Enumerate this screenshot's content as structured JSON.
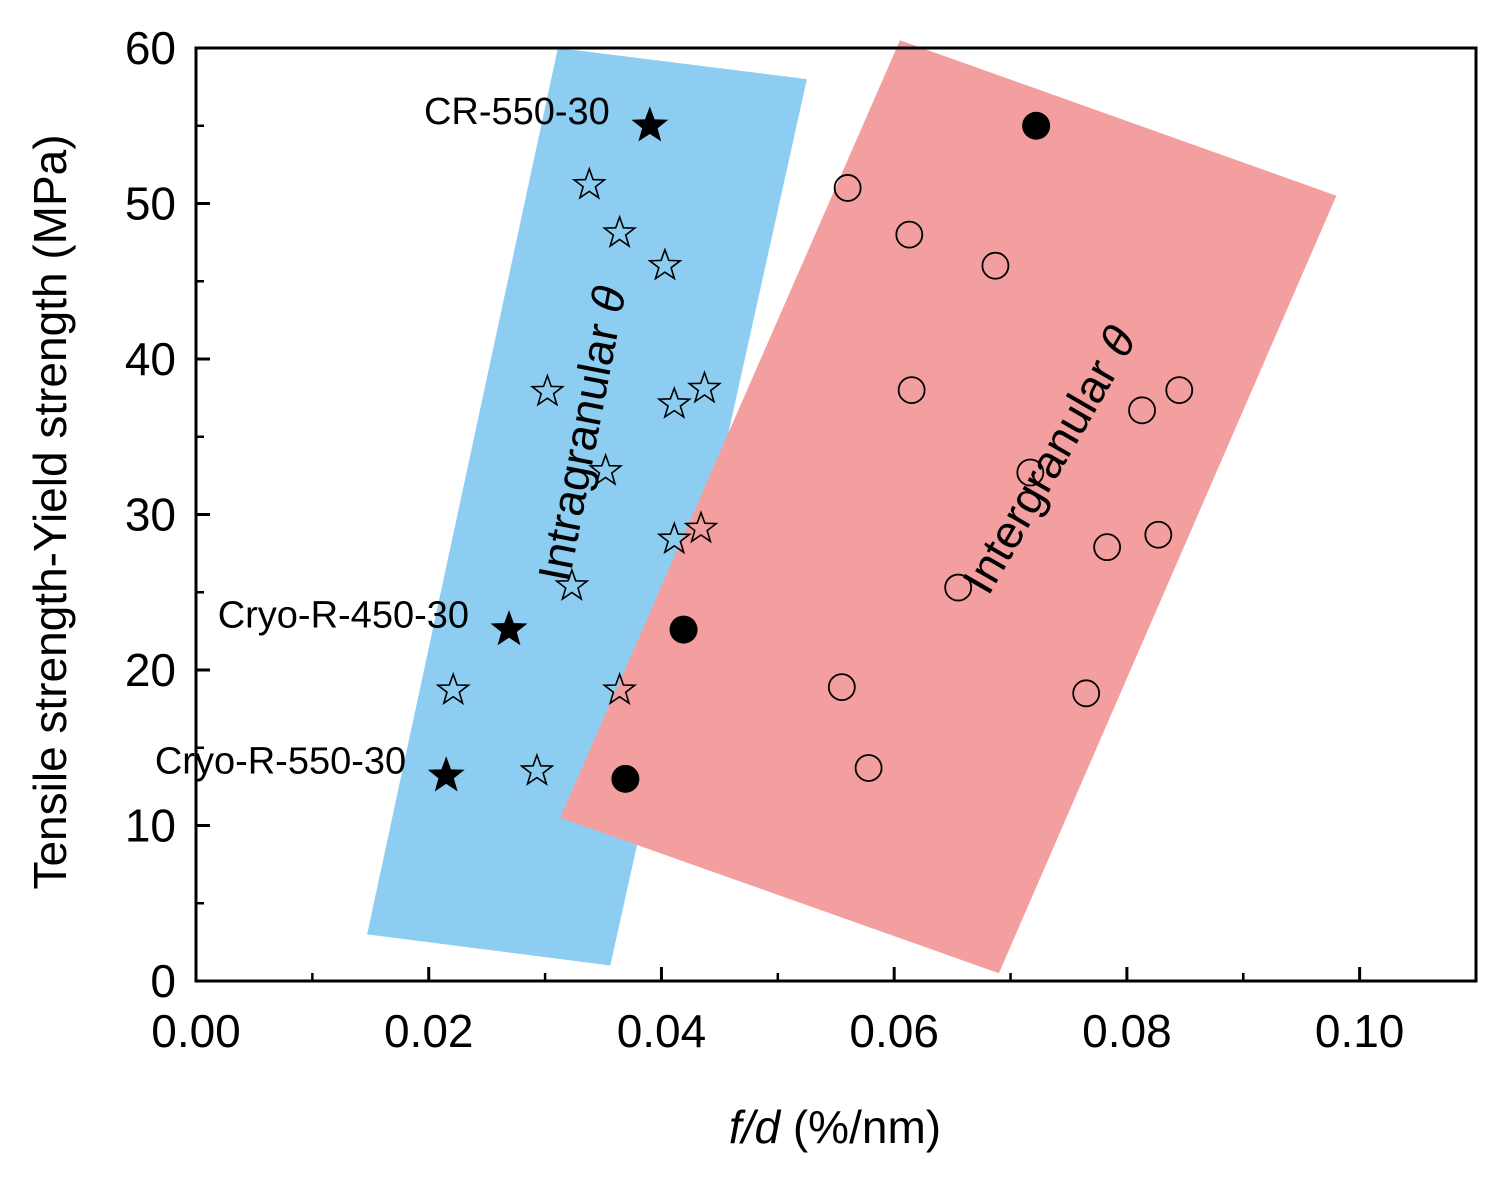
{
  "chart_data": {
    "type": "scatter",
    "xlabel_italic": "f/d",
    "xlabel_rest": " (%/nm)",
    "ylabel": "Tensile strength-Yield strength (MPa)",
    "xlim": [
      0,
      0.11
    ],
    "ylim": [
      0,
      60
    ],
    "x_ticks": [
      0.0,
      0.02,
      0.04,
      0.06,
      0.08,
      0.1
    ],
    "x_tick_labels": [
      "0.00",
      "0.02",
      "0.04",
      "0.06",
      "0.08",
      "0.10"
    ],
    "y_ticks": [
      0,
      10,
      20,
      30,
      40,
      50,
      60
    ],
    "y_tick_labels": [
      "0",
      "10",
      "20",
      "30",
      "40",
      "50",
      "60"
    ],
    "x_minor_ticks": [
      0.01,
      0.03,
      0.05,
      0.07,
      0.09
    ],
    "y_minor_ticks": [
      5,
      15,
      25,
      35,
      45,
      55
    ],
    "regions": [
      {
        "name": "Intragranular",
        "label": "Intragranular ",
        "label_symbol": "θ",
        "color": "#8ecdf2",
        "polygon": [
          [
            0.0147,
            3
          ],
          [
            0.0311,
            60
          ],
          [
            0.0525,
            58
          ],
          [
            0.0356,
            1
          ]
        ],
        "label_at": [
          0.0345,
          35
        ],
        "label_angle": -79
      },
      {
        "name": "Intergranular",
        "label": "Intergranular ",
        "label_symbol": "θ",
        "color": "#f39f9f",
        "polygon": [
          [
            0.0313,
            10.5
          ],
          [
            0.0605,
            60.5
          ],
          [
            0.098,
            50.5
          ],
          [
            0.069,
            0.5
          ]
        ],
        "label_at": [
          0.0745,
          33
        ],
        "label_angle": -60
      }
    ],
    "series": [
      {
        "name": "Intragranular open stars",
        "marker": "star-open",
        "points": [
          [
            0.0338,
            51.2
          ],
          [
            0.0364,
            48.1
          ],
          [
            0.0403,
            46.0
          ],
          [
            0.0302,
            37.9
          ],
          [
            0.0411,
            37.1
          ],
          [
            0.0437,
            38.1
          ],
          [
            0.0352,
            32.8
          ],
          [
            0.0411,
            28.4
          ],
          [
            0.0434,
            29.1
          ],
          [
            0.0323,
            25.4
          ],
          [
            0.0221,
            18.7
          ],
          [
            0.0364,
            18.7
          ],
          [
            0.0293,
            13.5
          ]
        ]
      },
      {
        "name": "Intragranular filled stars",
        "marker": "star-filled",
        "points": [
          [
            0.039,
            55.0
          ],
          [
            0.0269,
            22.6
          ],
          [
            0.0215,
            13.2
          ]
        ]
      },
      {
        "name": "Intergranular open circles",
        "marker": "circle-open",
        "points": [
          [
            0.056,
            51.0
          ],
          [
            0.0613,
            48.0
          ],
          [
            0.0687,
            46.0
          ],
          [
            0.0615,
            38.0
          ],
          [
            0.0813,
            36.7
          ],
          [
            0.0845,
            38.0
          ],
          [
            0.0717,
            32.7
          ],
          [
            0.0783,
            27.9
          ],
          [
            0.0827,
            28.7
          ],
          [
            0.0655,
            25.3
          ],
          [
            0.0555,
            18.9
          ],
          [
            0.0765,
            18.5
          ],
          [
            0.0578,
            13.7
          ]
        ]
      },
      {
        "name": "Intergranular filled circles",
        "marker": "circle-filled",
        "points": [
          [
            0.0722,
            55.0
          ],
          [
            0.0419,
            22.6
          ],
          [
            0.0369,
            13.0
          ]
        ]
      }
    ],
    "annotations": [
      {
        "text": "CR-550-30",
        "x": 0.039,
        "y": 55.0,
        "anchor": "end"
      },
      {
        "text": "Cryo-R-450-30",
        "x": 0.0269,
        "y": 22.6,
        "anchor": "end"
      },
      {
        "text": "Cryo-R-550-30",
        "x": 0.0215,
        "y": 13.2,
        "anchor": "end"
      }
    ],
    "grid": false,
    "legend": "none"
  }
}
